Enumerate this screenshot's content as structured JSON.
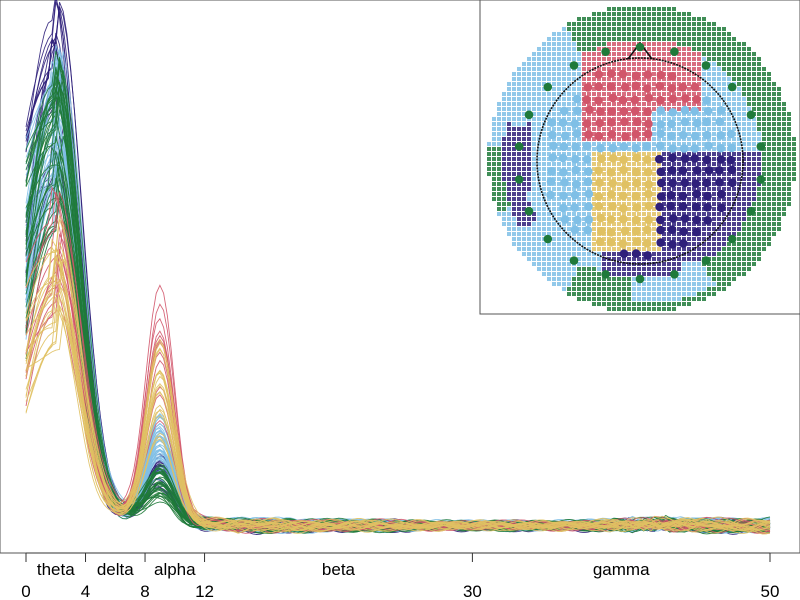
{
  "chart_data": {
    "type": "line",
    "title": "",
    "xlabel": "",
    "ylabel": "",
    "xlim": [
      0,
      50
    ],
    "ylim": [
      0,
      1
    ],
    "x_ticks": [
      0,
      4,
      8,
      12,
      30,
      50
    ],
    "bands": [
      {
        "name": "theta",
        "from": 0,
        "to": 4
      },
      {
        "name": "delta",
        "from": 4,
        "to": 8
      },
      {
        "name": "alpha",
        "from": 8,
        "to": 12
      },
      {
        "name": "beta",
        "from": 12,
        "to": 30
      },
      {
        "name": "gamma",
        "from": 30,
        "to": 50
      }
    ],
    "series": [
      {
        "name": "navy cluster",
        "color": "#2e1f7a",
        "count": 20,
        "peak": 0.88,
        "alpha_peak": 0.1
      },
      {
        "name": "blue cluster",
        "color": "#7fbfe6",
        "count": 40,
        "peak": 0.78,
        "alpha_peak": 0.16
      },
      {
        "name": "green cluster",
        "color": "#1f7a3a",
        "count": 35,
        "peak": 0.76,
        "alpha_peak": 0.08
      },
      {
        "name": "red cluster",
        "color": "#d1556a",
        "count": 12,
        "peak": 0.55,
        "alpha_peak": 0.36
      },
      {
        "name": "yellow cluster",
        "color": "#e0c163",
        "count": 20,
        "peak": 0.48,
        "alpha_peak": 0.27
      }
    ],
    "inset": {
      "type": "topographic map",
      "description": "electrode cluster scalp map",
      "colors": [
        "#2e1f7a",
        "#7fbfe6",
        "#1f7a3a",
        "#d1556a",
        "#e0c163"
      ]
    }
  }
}
